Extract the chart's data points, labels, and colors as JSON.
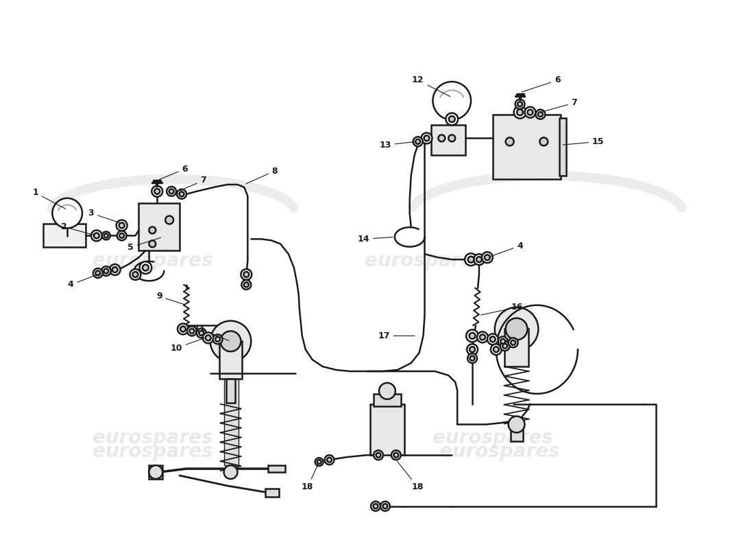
{
  "bg_color": "#ffffff",
  "line_color": "#1a1a1a",
  "label_color": "#111111",
  "wm_color": "#c8c8c8",
  "wm_text": "eurospares",
  "fig_w": 11.0,
  "fig_h": 8.0,
  "dpi": 100
}
